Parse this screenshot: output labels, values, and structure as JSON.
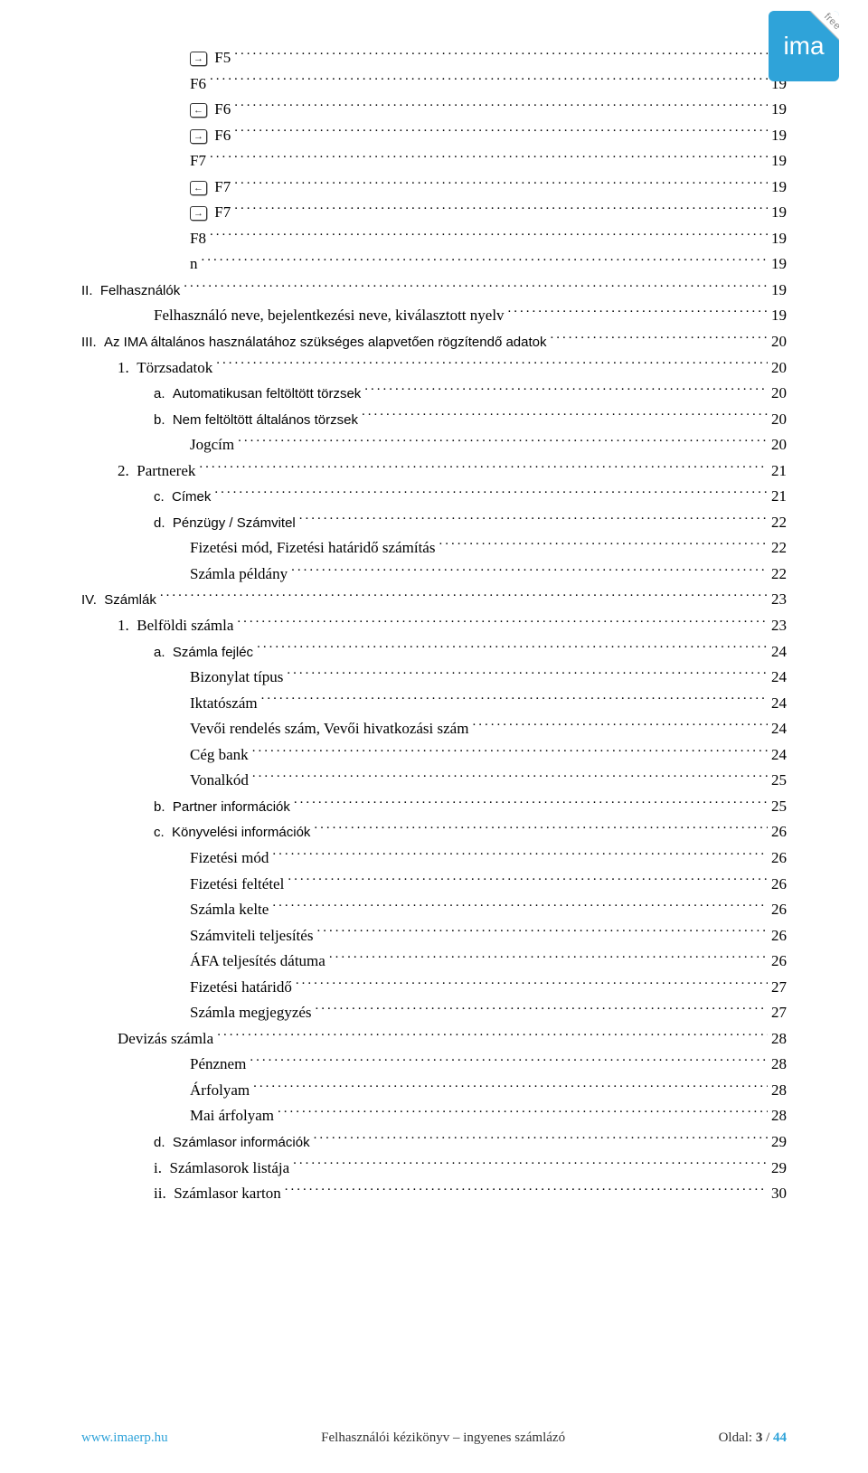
{
  "logo": {
    "text": "ima",
    "corner": "free"
  },
  "footer": {
    "left": "www.imaerp.hu",
    "center": "Felhasználói kézikönyv – ingyenes számlázó",
    "right_label": "Oldal:",
    "page_current": "3",
    "page_sep": " / ",
    "page_total": "44"
  },
  "entries": [
    {
      "indent": 3,
      "style": "serif",
      "prefix": null,
      "icon": "→",
      "label": "F5",
      "page": "19"
    },
    {
      "indent": 3,
      "style": "serif",
      "prefix": null,
      "icon": null,
      "label": "F6",
      "page": "19"
    },
    {
      "indent": 3,
      "style": "serif",
      "prefix": null,
      "icon": "←",
      "label": "F6",
      "page": "19"
    },
    {
      "indent": 3,
      "style": "serif",
      "prefix": null,
      "icon": "→",
      "label": "F6",
      "page": "19"
    },
    {
      "indent": 3,
      "style": "serif",
      "prefix": null,
      "icon": null,
      "label": "F7",
      "page": "19"
    },
    {
      "indent": 3,
      "style": "serif",
      "prefix": null,
      "icon": "←",
      "label": "F7",
      "page": "19"
    },
    {
      "indent": 3,
      "style": "serif",
      "prefix": null,
      "icon": "→",
      "label": "F7",
      "page": "19"
    },
    {
      "indent": 3,
      "style": "serif",
      "prefix": null,
      "icon": null,
      "label": "F8",
      "page": "19"
    },
    {
      "indent": 3,
      "style": "serif",
      "prefix": null,
      "icon": null,
      "label": "n",
      "page": "19"
    },
    {
      "indent": 0,
      "style": "sans",
      "prefix": "II.",
      "icon": null,
      "label": "Felhasználók",
      "page": "19"
    },
    {
      "indent": 2,
      "style": "serif",
      "prefix": null,
      "icon": null,
      "label": "Felhasználó neve, bejelentkezési neve, kiválasztott nyelv",
      "page": "19"
    },
    {
      "indent": 0,
      "style": "sans",
      "prefix": "III.",
      "icon": null,
      "label": "Az IMA általános használatához szükséges alapvetően rögzítendő adatok",
      "page": "20"
    },
    {
      "indent": 1,
      "style": "serif",
      "prefix": "1.",
      "icon": null,
      "label": "Törzsadatok",
      "page": "20"
    },
    {
      "indent": 2,
      "style": "sans",
      "prefix": "a.",
      "icon": null,
      "label": "Automatikusan feltöltött törzsek",
      "page": "20"
    },
    {
      "indent": 2,
      "style": "sans",
      "prefix": "b.",
      "icon": null,
      "label": "Nem feltöltött általános törzsek",
      "page": "20"
    },
    {
      "indent": 3,
      "style": "serif",
      "prefix": null,
      "icon": null,
      "label": "Jogcím",
      "page": "20"
    },
    {
      "indent": 1,
      "style": "serif",
      "prefix": "2.",
      "icon": null,
      "label": "Partnerek",
      "page": "21"
    },
    {
      "indent": 2,
      "style": "sans",
      "prefix": "c.",
      "icon": null,
      "label": "Címek",
      "page": "21"
    },
    {
      "indent": 2,
      "style": "sans",
      "prefix": "d.",
      "icon": null,
      "label": "Pénzügy / Számvitel",
      "page": "22"
    },
    {
      "indent": 3,
      "style": "serif",
      "prefix": null,
      "icon": null,
      "label": "Fizetési mód, Fizetési határidő számítás",
      "page": "22"
    },
    {
      "indent": 3,
      "style": "serif",
      "prefix": null,
      "icon": null,
      "label": "Számla példány",
      "page": "22"
    },
    {
      "indent": 0,
      "style": "sans",
      "prefix": "IV.",
      "icon": null,
      "label": "Számlák",
      "page": "23"
    },
    {
      "indent": 1,
      "style": "serif",
      "prefix": "1.",
      "icon": null,
      "label": "Belföldi számla",
      "page": "23"
    },
    {
      "indent": 2,
      "style": "sans",
      "prefix": "a.",
      "icon": null,
      "label": "Számla fejléc",
      "page": "24"
    },
    {
      "indent": 3,
      "style": "serif",
      "prefix": null,
      "icon": null,
      "label": "Bizonylat típus",
      "page": "24"
    },
    {
      "indent": 3,
      "style": "serif",
      "prefix": null,
      "icon": null,
      "label": "Iktatószám",
      "page": "24"
    },
    {
      "indent": 3,
      "style": "serif",
      "prefix": null,
      "icon": null,
      "label": "Vevői rendelés szám, Vevői hivatkozási szám",
      "page": "24"
    },
    {
      "indent": 3,
      "style": "serif",
      "prefix": null,
      "icon": null,
      "label": "Cég bank",
      "page": "24"
    },
    {
      "indent": 3,
      "style": "serif",
      "prefix": null,
      "icon": null,
      "label": "Vonalkód",
      "page": "25"
    },
    {
      "indent": 2,
      "style": "sans",
      "prefix": "b.",
      "icon": null,
      "label": "Partner információk",
      "page": "25"
    },
    {
      "indent": 2,
      "style": "sans",
      "prefix": "c.",
      "icon": null,
      "label": "Könyvelési információk",
      "page": "26"
    },
    {
      "indent": 3,
      "style": "serif",
      "prefix": null,
      "icon": null,
      "label": "Fizetési mód",
      "page": "26"
    },
    {
      "indent": 3,
      "style": "serif",
      "prefix": null,
      "icon": null,
      "label": "Fizetési feltétel",
      "page": "26"
    },
    {
      "indent": 3,
      "style": "serif",
      "prefix": null,
      "icon": null,
      "label": "Számla kelte",
      "page": "26"
    },
    {
      "indent": 3,
      "style": "serif",
      "prefix": null,
      "icon": null,
      "label": "Számviteli teljesítés",
      "page": "26"
    },
    {
      "indent": 3,
      "style": "serif",
      "prefix": null,
      "icon": null,
      "label": "ÁFA teljesítés dátuma",
      "page": "26"
    },
    {
      "indent": 3,
      "style": "serif",
      "prefix": null,
      "icon": null,
      "label": "Fizetési határidő",
      "page": "27"
    },
    {
      "indent": 3,
      "style": "serif",
      "prefix": null,
      "icon": null,
      "label": "Számla megjegyzés",
      "page": "27"
    },
    {
      "indent": 1,
      "style": "serif",
      "prefix": null,
      "icon": null,
      "label": "Devizás számla",
      "page": "28"
    },
    {
      "indent": 3,
      "style": "serif",
      "prefix": null,
      "icon": null,
      "label": "Pénznem",
      "page": "28"
    },
    {
      "indent": 3,
      "style": "serif",
      "prefix": null,
      "icon": null,
      "label": "Árfolyam",
      "page": "28"
    },
    {
      "indent": 3,
      "style": "serif",
      "prefix": null,
      "icon": null,
      "label": "Mai árfolyam",
      "page": "28"
    },
    {
      "indent": 2,
      "style": "sans",
      "prefix": "d.",
      "icon": null,
      "label": "Számlasor információk",
      "page": "29"
    },
    {
      "indent": 2,
      "style": "serif",
      "prefix": "i.",
      "icon": null,
      "label": "Számlasorok listája",
      "page": "29"
    },
    {
      "indent": 2,
      "style": "serif",
      "prefix": "ii.",
      "icon": null,
      "label": "Számlasor karton",
      "page": "30"
    }
  ]
}
